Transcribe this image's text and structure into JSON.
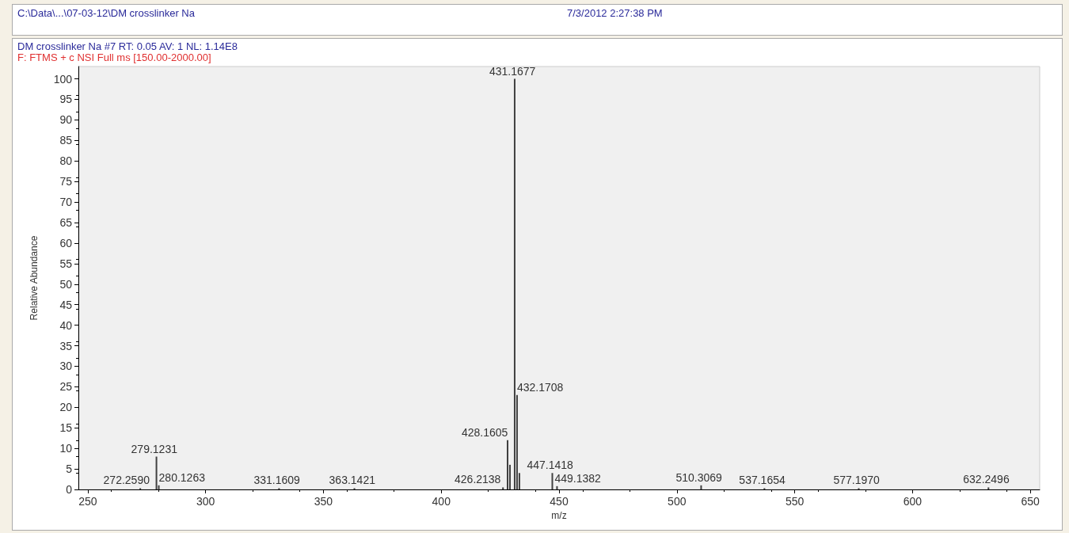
{
  "chart_data": {
    "type": "bar",
    "title": "DM crosslinker Na #7  RT: 0.05  AV: 1  NL: 1.14E8",
    "subtitle": "F: FTMS + c NSI Full ms [150.00-2000.00]",
    "xlabel": "m/z",
    "ylabel": "Relative Abundance",
    "x": [
      272.259,
      279.1231,
      280.1263,
      331.1609,
      363.1421,
      426.2138,
      428.1605,
      429.16,
      431.1677,
      432.1708,
      433.17,
      447.1418,
      449.1382,
      510.3069,
      537.1654,
      577.197,
      632.2496
    ],
    "values": [
      0.3,
      8,
      1,
      0.3,
      0.3,
      0.5,
      12,
      6,
      100,
      23,
      4,
      4,
      0.8,
      1,
      0.3,
      0.3,
      0.5
    ],
    "color": "#404040",
    "xlim": [
      246,
      654
    ],
    "xticks": [
      250,
      300,
      350,
      400,
      450,
      500,
      550,
      600,
      650
    ],
    "ylim": [
      0,
      103
    ],
    "yticks": [
      0,
      5,
      10,
      15,
      20,
      25,
      30,
      35,
      40,
      45,
      50,
      55,
      60,
      65,
      70,
      75,
      80,
      85,
      90,
      95,
      100
    ],
    "grid": false,
    "annotations": [
      "C:\\Data\\...\\07-03-12\\DM crosslinker Na",
      "7/3/2012 2:27:38 PM",
      {
        "text": "272.2590",
        "x": 272.259,
        "y": 0.3
      },
      {
        "text": "279.1231",
        "x": 279.1231,
        "y": 8
      },
      {
        "text": "280.1263",
        "x": 280.1263,
        "y": 1
      },
      {
        "text": "331.1609",
        "x": 331.1609,
        "y": 0.3
      },
      {
        "text": "363.1421",
        "x": 363.1421,
        "y": 0.3
      },
      {
        "text": "426.2138",
        "x": 426.2138,
        "y": 0.5
      },
      {
        "text": "428.1605",
        "x": 428.1605,
        "y": 12
      },
      {
        "text": "431.1677",
        "x": 431.1677,
        "y": 100
      },
      {
        "text": "432.1708",
        "x": 432.1708,
        "y": 23
      },
      {
        "text": "447.1418",
        "x": 447.1418,
        "y": 4
      },
      {
        "text": "449.1382",
        "x": 449.1382,
        "y": 0.8
      },
      {
        "text": "510.3069",
        "x": 510.3069,
        "y": 1
      },
      {
        "text": "537.1654",
        "x": 537.1654,
        "y": 0.3
      },
      {
        "text": "577.1970",
        "x": 577.197,
        "y": 0.3
      },
      {
        "text": "632.2496",
        "x": 632.2496,
        "y": 0.5
      }
    ]
  }
}
